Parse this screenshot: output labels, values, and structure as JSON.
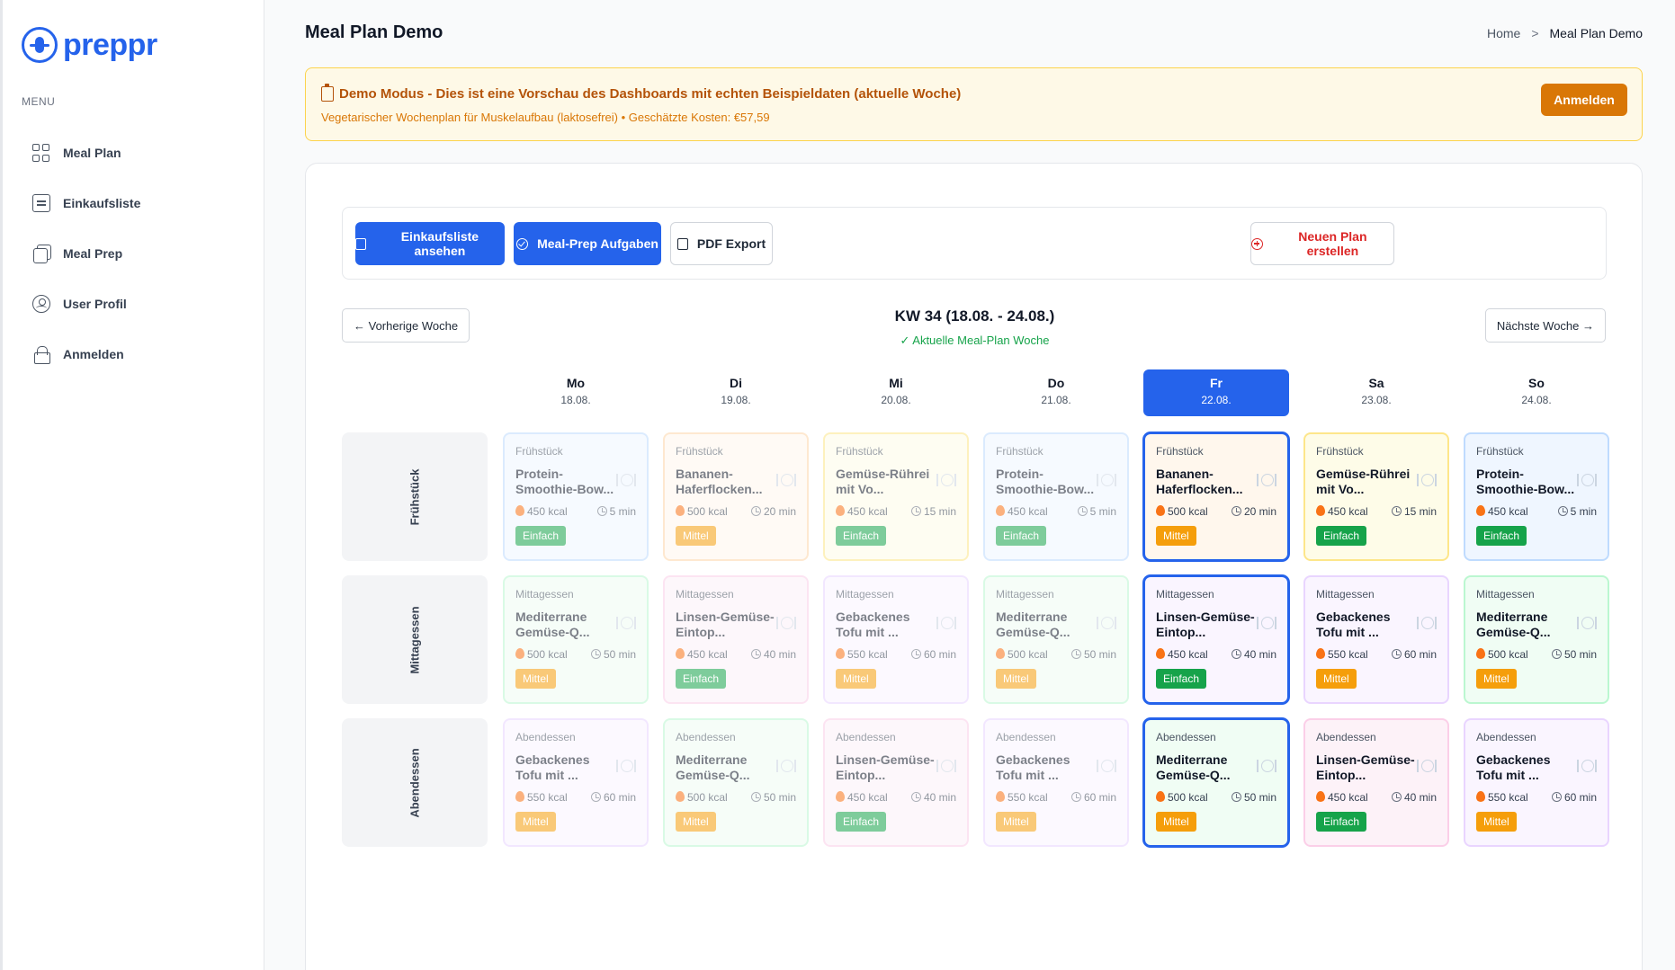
{
  "app": {
    "name": "preppr"
  },
  "sidebar": {
    "menu_label": "MENU",
    "items": [
      {
        "label": "Meal Plan",
        "icon": "grid-icon"
      },
      {
        "label": "Einkaufsliste",
        "icon": "list-icon"
      },
      {
        "label": "Meal Prep",
        "icon": "copy-icon"
      },
      {
        "label": "User Profil",
        "icon": "user-circle-icon"
      },
      {
        "label": "Anmelden",
        "icon": "lock-icon"
      }
    ]
  },
  "header": {
    "title": "Meal Plan Demo",
    "breadcrumb": {
      "home": "Home",
      "separator": ">",
      "current": "Meal Plan Demo"
    }
  },
  "banner": {
    "title": "Demo Modus - Dies ist eine Vorschau des Dashboards mit echten Beispieldaten (aktuelle Woche)",
    "subtitle": "Vegetarischer Wochenplan für Muskelaufbau (laktosefrei) • Geschätzte Kosten: €57,59",
    "button": "Anmelden"
  },
  "toolbar": {
    "shopping_list": "Einkaufsliste ansehen",
    "meal_prep_tasks": "Meal-Prep Aufgaben",
    "pdf_export": "PDF Export",
    "new_plan": "Neuen Plan erstellen"
  },
  "week": {
    "prev": "← Vorherige Woche",
    "next": "Nächste Woche →",
    "title": "KW 34 (18.08. - 24.08.)",
    "subtitle": "✓ Aktuelle Meal-Plan Woche"
  },
  "days": [
    {
      "name": "Mo",
      "date": "18.08."
    },
    {
      "name": "Di",
      "date": "19.08."
    },
    {
      "name": "Mi",
      "date": "20.08."
    },
    {
      "name": "Do",
      "date": "21.08."
    },
    {
      "name": "Fr",
      "date": "22.08."
    },
    {
      "name": "Sa",
      "date": "23.08."
    },
    {
      "name": "So",
      "date": "24.08."
    }
  ],
  "active_day": 4,
  "rows": [
    {
      "label": "Frühstück"
    },
    {
      "label": "Mittagessen"
    },
    {
      "label": "Abendessen"
    }
  ],
  "meals": [
    [
      {
        "type": "Frühstück",
        "name": "Protein-Smoothie-Bow...",
        "kcal": "450 kcal",
        "time": "5 min",
        "level": "Einfach"
      },
      {
        "type": "Frühstück",
        "name": "Bananen-Haferflocken...",
        "kcal": "500 kcal",
        "time": "20 min",
        "level": "Mittel"
      },
      {
        "type": "Frühstück",
        "name": "Gemüse-Rührei mit Vo...",
        "kcal": "450 kcal",
        "time": "15 min",
        "level": "Einfach"
      },
      {
        "type": "Frühstück",
        "name": "Protein-Smoothie-Bow...",
        "kcal": "450 kcal",
        "time": "5 min",
        "level": "Einfach"
      },
      {
        "type": "Frühstück",
        "name": "Bananen-Haferflocken...",
        "kcal": "500 kcal",
        "time": "20 min",
        "level": "Mittel"
      },
      {
        "type": "Frühstück",
        "name": "Gemüse-Rührei mit Vo...",
        "kcal": "450 kcal",
        "time": "15 min",
        "level": "Einfach"
      },
      {
        "type": "Frühstück",
        "name": "Protein-Smoothie-Bow...",
        "kcal": "450 kcal",
        "time": "5 min",
        "level": "Einfach"
      }
    ],
    [
      {
        "type": "Mittagessen",
        "name": "Mediterrane Gemüse-Q...",
        "kcal": "500 kcal",
        "time": "50 min",
        "level": "Mittel"
      },
      {
        "type": "Mittagessen",
        "name": "Linsen-Gemüse-Eintop...",
        "kcal": "450 kcal",
        "time": "40 min",
        "level": "Einfach"
      },
      {
        "type": "Mittagessen",
        "name": "Gebackenes Tofu mit ...",
        "kcal": "550 kcal",
        "time": "60 min",
        "level": "Mittel"
      },
      {
        "type": "Mittagessen",
        "name": "Mediterrane Gemüse-Q...",
        "kcal": "500 kcal",
        "time": "50 min",
        "level": "Mittel"
      },
      {
        "type": "Mittagessen",
        "name": "Linsen-Gemüse-Eintop...",
        "kcal": "450 kcal",
        "time": "40 min",
        "level": "Einfach"
      },
      {
        "type": "Mittagessen",
        "name": "Gebackenes Tofu mit ...",
        "kcal": "550 kcal",
        "time": "60 min",
        "level": "Mittel"
      },
      {
        "type": "Mittagessen",
        "name": "Mediterrane Gemüse-Q...",
        "kcal": "500 kcal",
        "time": "50 min",
        "level": "Mittel"
      }
    ],
    [
      {
        "type": "Abendessen",
        "name": "Gebackenes Tofu mit ...",
        "kcal": "550 kcal",
        "time": "60 min",
        "level": "Mittel"
      },
      {
        "type": "Abendessen",
        "name": "Mediterrane Gemüse-Q...",
        "kcal": "500 kcal",
        "time": "50 min",
        "level": "Mittel"
      },
      {
        "type": "Abendessen",
        "name": "Linsen-Gemüse-Eintop...",
        "kcal": "450 kcal",
        "time": "40 min",
        "level": "Einfach"
      },
      {
        "type": "Abendessen",
        "name": "Gebackenes Tofu mit ...",
        "kcal": "550 kcal",
        "time": "60 min",
        "level": "Mittel"
      },
      {
        "type": "Abendessen",
        "name": "Mediterrane Gemüse-Q...",
        "kcal": "500 kcal",
        "time": "50 min",
        "level": "Mittel"
      },
      {
        "type": "Abendessen",
        "name": "Linsen-Gemüse-Eintop...",
        "kcal": "450 kcal",
        "time": "40 min",
        "level": "Einfach"
      },
      {
        "type": "Abendessen",
        "name": "Gebackenes Tofu mit ...",
        "kcal": "550 kcal",
        "time": "60 min",
        "level": "Mittel"
      }
    ]
  ],
  "colors": {
    "primary": "#2563eb",
    "easy": "#16a34a",
    "medium": "#f59e0b",
    "warning": "#d97706",
    "card_themes": {
      "blue": {
        "bg": "#eff6ff",
        "border": "#bfdbfe"
      },
      "orange": {
        "bg": "#fff7ed",
        "border": "#fed7aa"
      },
      "yellow": {
        "bg": "#fefce8",
        "border": "#fde68a"
      },
      "green": {
        "bg": "#f0fdf4",
        "border": "#bbf7d0"
      },
      "pink": {
        "bg": "#fdf2f8",
        "border": "#fbcfe8"
      },
      "purple": {
        "bg": "#faf5ff",
        "border": "#e9d5ff"
      }
    }
  }
}
